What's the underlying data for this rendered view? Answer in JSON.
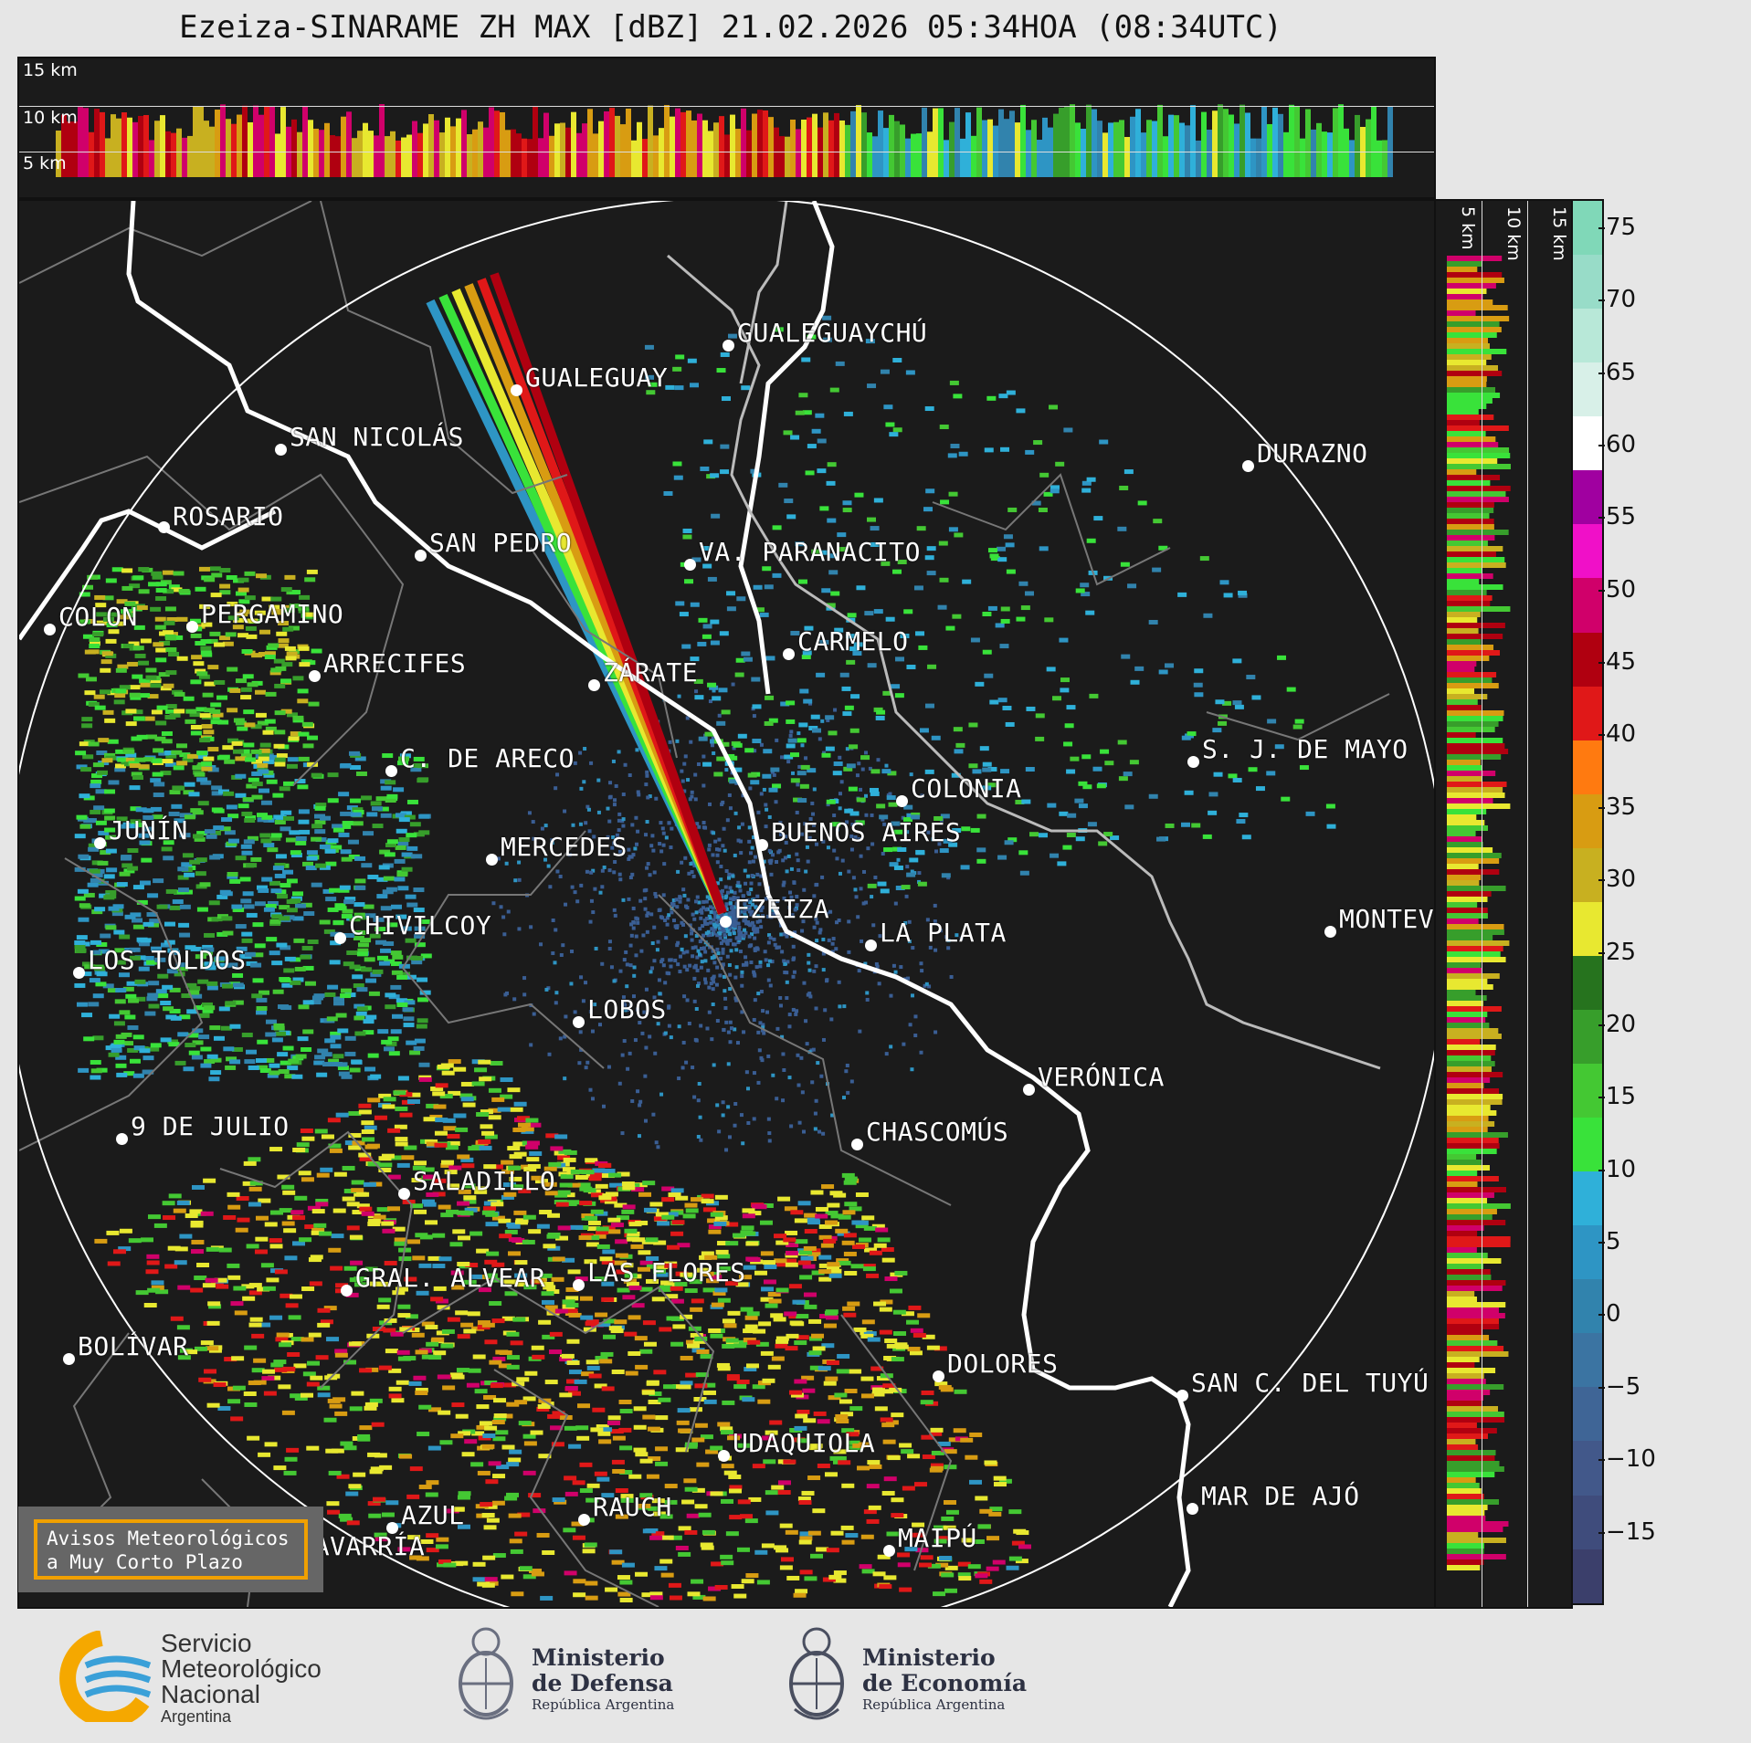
{
  "title": "Ezeiza-SINARAME ZH MAX [dBZ] 21.02.2026 05:34HOA (08:34UTC)",
  "top_panel": {
    "heights": [
      "15 km",
      "10 km",
      "5 km"
    ]
  },
  "side_panel": {
    "heights": [
      "5 km",
      "10 km",
      "15 km"
    ]
  },
  "colorbar": {
    "ticks": [
      "75",
      "70",
      "65",
      "60",
      "55",
      "50",
      "45",
      "40",
      "35",
      "30",
      "25",
      "20",
      "15",
      "10",
      "5",
      "0",
      "−5",
      "−10",
      "−15"
    ],
    "colors": [
      "#3b3f6b",
      "#3f4c7c",
      "#42588a",
      "#3f6596",
      "#3b74a2",
      "#3183ad",
      "#2e95c4",
      "#2fb0d9",
      "#39e23a",
      "#44c833",
      "#379e2b",
      "#26731e",
      "#e8e830",
      "#c8b020",
      "#d89c12",
      "#ff7a10",
      "#e01818",
      "#b00010",
      "#d0006a",
      "#f010c8",
      "#a000a0",
      "#ffffff",
      "#d8f0e8",
      "#b8e8d8",
      "#98dcc8",
      "#80d8b8"
    ]
  },
  "cities": [
    {
      "name": "ROSARIO"
    },
    {
      "name": "GUALEGUAYCHÚ"
    },
    {
      "name": "GUALEGUAY"
    },
    {
      "name": "SAN NICOLÁS"
    },
    {
      "name": "DURAZNO"
    },
    {
      "name": "SAN PEDRO"
    },
    {
      "name": "VA. PARANACITO"
    },
    {
      "name": "COLON"
    },
    {
      "name": "PERGAMINO"
    },
    {
      "name": "CARMELO"
    },
    {
      "name": "ARRECIFES"
    },
    {
      "name": "ZÁRATE"
    },
    {
      "name": "S. J. DE MAYO"
    },
    {
      "name": "C. DE ARECO"
    },
    {
      "name": "COLONIA"
    },
    {
      "name": "JUNÍN"
    },
    {
      "name": "BUENOS AIRES"
    },
    {
      "name": "MERCEDES"
    },
    {
      "name": "EZEIZA"
    },
    {
      "name": "MONTEVIDEO"
    },
    {
      "name": "CHIVILCOY"
    },
    {
      "name": "LA PLATA"
    },
    {
      "name": "LOS TOLDOS"
    },
    {
      "name": "LOBOS"
    },
    {
      "name": "VERÓNICA"
    },
    {
      "name": "9 DE JULIO"
    },
    {
      "name": "CHASCOMÚS"
    },
    {
      "name": "SALADILLO"
    },
    {
      "name": "GRAL. ALVEAR"
    },
    {
      "name": "LAS FLORES"
    },
    {
      "name": "BOLÍVAR"
    },
    {
      "name": "DOLORES"
    },
    {
      "name": "SAN C. DEL TUYÚ"
    },
    {
      "name": "UDAQUIOLA"
    },
    {
      "name": "MAR DE AJÓ"
    },
    {
      "name": "AZUL"
    },
    {
      "name": "RAUCH"
    },
    {
      "name": "OLAVARRÍA"
    },
    {
      "name": "MAIPÚ"
    }
  ],
  "aviso": {
    "line1": "Avisos Meteorológicos",
    "line2": "a Muy Corto Plazo"
  },
  "footer": {
    "smn": {
      "line1": "Servicio",
      "line2": "Meteorológico",
      "line3": "Nacional",
      "line4": "Argentina"
    },
    "defensa": {
      "line1": "Ministerio",
      "line2": "de Defensa",
      "line3": "República Argentina"
    },
    "economia": {
      "line1": "Ministerio",
      "line2": "de Economía",
      "line3": "República Argentina"
    }
  }
}
